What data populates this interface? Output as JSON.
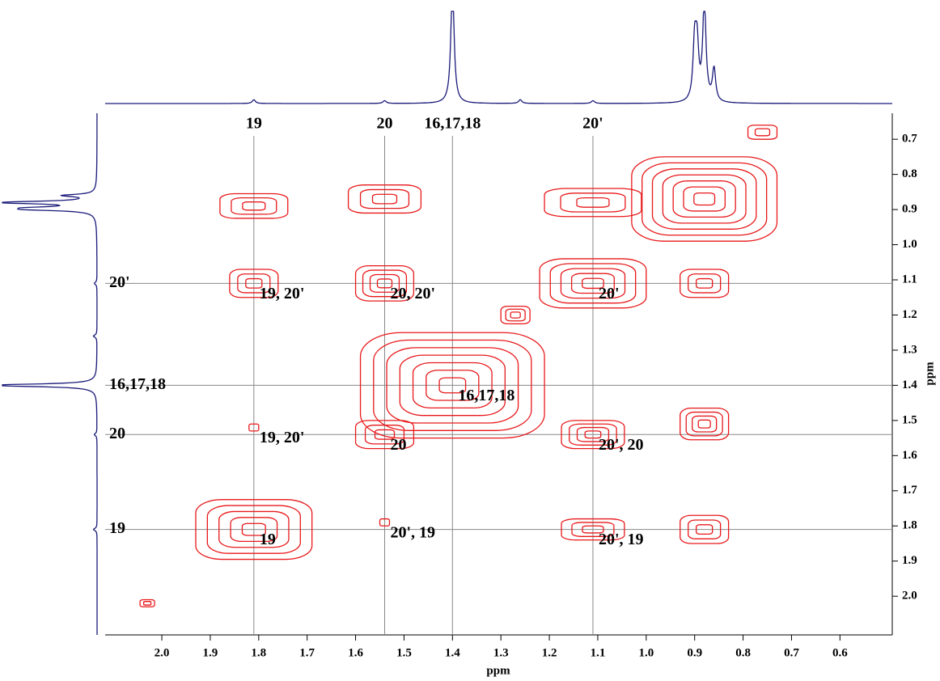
{
  "chart_data": {
    "type": "contour",
    "xlabel": "ppm",
    "ylabel": "ppm",
    "xlim": [
      2.117,
      0.492
    ],
    "ylim": [
      0.626,
      2.11
    ],
    "xticks": [
      {
        "value": 2.0,
        "label": "2.0"
      },
      1.9,
      1.8,
      1.7,
      1.6,
      1.5,
      1.4,
      1.3,
      1.2,
      1.1,
      {
        "value": 1.0,
        "label": "1.0"
      },
      0.9,
      0.8,
      0.7,
      0.6
    ],
    "yticks": [
      0.7,
      0.8,
      0.9,
      {
        "value": 1.0,
        "label": "1.0"
      },
      1.1,
      1.2,
      1.3,
      1.4,
      1.5,
      1.6,
      1.7,
      1.8,
      1.9,
      {
        "value": 2.0,
        "label": "2.0"
      }
    ],
    "color": "#e8191b",
    "projection_color": "#1a1a7a",
    "reference_color": "#888888",
    "signals": [
      {
        "label": "19",
        "shift": 1.81
      },
      {
        "label": "20",
        "shift": 1.54
      },
      {
        "label": "16,17,18",
        "shift": 1.4
      },
      {
        "label": "20'",
        "shift": 1.11
      }
    ],
    "left_labels": [
      "19",
      "20",
      "16,17,18",
      "20'"
    ],
    "projection": {
      "shifts": [
        1.4,
        0.88,
        0.9,
        0.895,
        0.86,
        1.81,
        1.54,
        1.26,
        1.11
      ],
      "intensities": [
        1.3,
        1.1,
        0.6,
        0.55,
        0.35,
        0.04,
        0.03,
        0.04,
        0.03
      ]
    },
    "peaks": [
      {
        "x": 1.81,
        "y": 1.81,
        "w": 0.24,
        "h": 0.17,
        "levels": 5,
        "label": "19"
      },
      {
        "x": 1.54,
        "y": 1.54,
        "w": 0.12,
        "h": 0.08,
        "levels": 3,
        "label": "20"
      },
      {
        "x": 1.4,
        "y": 1.4,
        "w": 0.38,
        "h": 0.3,
        "levels": 7,
        "label": "16,17,18"
      },
      {
        "x": 1.11,
        "y": 1.11,
        "w": 0.22,
        "h": 0.14,
        "levels": 5,
        "label": "20'"
      },
      {
        "x": 0.88,
        "y": 0.87,
        "w": 0.3,
        "h": 0.24,
        "levels": 7
      },
      {
        "x": 1.81,
        "y": 0.89,
        "w": 0.14,
        "h": 0.07,
        "levels": 3
      },
      {
        "x": 1.81,
        "y": 1.11,
        "w": 0.1,
        "h": 0.08,
        "levels": 3,
        "label": "19, 20'"
      },
      {
        "x": 1.81,
        "y": 1.52,
        "w": 0.02,
        "h": 0.02,
        "levels": 1,
        "label": "19, 20'"
      },
      {
        "x": 1.54,
        "y": 0.87,
        "w": 0.15,
        "h": 0.08,
        "levels": 3
      },
      {
        "x": 1.54,
        "y": 1.11,
        "w": 0.12,
        "h": 0.1,
        "levels": 4,
        "label": "20, 20'"
      },
      {
        "x": 1.54,
        "y": 1.79,
        "w": 0.02,
        "h": 0.02,
        "levels": 1,
        "label": "20', 19"
      },
      {
        "x": 1.11,
        "y": 0.88,
        "w": 0.2,
        "h": 0.08,
        "levels": 3
      },
      {
        "x": 1.11,
        "y": 1.54,
        "w": 0.13,
        "h": 0.08,
        "levels": 4,
        "label": "20', 20"
      },
      {
        "x": 1.11,
        "y": 1.81,
        "w": 0.13,
        "h": 0.06,
        "levels": 3,
        "label": "20', 19"
      },
      {
        "x": 0.88,
        "y": 1.11,
        "w": 0.1,
        "h": 0.08,
        "levels": 3
      },
      {
        "x": 0.88,
        "y": 1.51,
        "w": 0.1,
        "h": 0.09,
        "levels": 4
      },
      {
        "x": 0.88,
        "y": 1.81,
        "w": 0.1,
        "h": 0.08,
        "levels": 3
      },
      {
        "x": 1.27,
        "y": 1.2,
        "w": 0.06,
        "h": 0.05,
        "levels": 3
      },
      {
        "x": 0.76,
        "y": 0.68,
        "w": 0.06,
        "h": 0.04,
        "levels": 2
      },
      {
        "x": 2.03,
        "y": 2.02,
        "w": 0.03,
        "h": 0.02,
        "levels": 2
      }
    ]
  }
}
